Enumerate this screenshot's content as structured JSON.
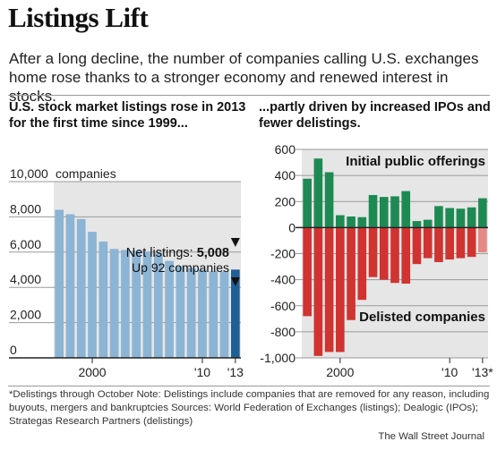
{
  "headline": "Listings Lift",
  "dek": "After a long decline, the number of companies calling U.S. exchanges home rose thanks to a stronger economy and renewed interest in stocks.",
  "footnote": "*Delistings through October   Note: Delistings include companies that are removed for any reason, including buyouts, mergers and bankruptcies      Sources: World Federation of Exchanges (listings); Dealogic (IPOs); Strategas Research Partners (delistings)",
  "credit": "The Wall Street Journal",
  "chart_data": [
    {
      "type": "bar",
      "subtitle": "U.S. stock market listings rose in 2013 for the first time since 1999...",
      "x": [
        1997,
        1998,
        1999,
        2000,
        2001,
        2002,
        2003,
        2004,
        2005,
        2006,
        2007,
        2008,
        2009,
        2010,
        2011,
        2012,
        2013
      ],
      "values": [
        8400,
        8150,
        7880,
        7150,
        6600,
        6180,
        6120,
        6080,
        6030,
        5950,
        5500,
        5200,
        5100,
        5000,
        4920,
        4916,
        5008
      ],
      "ylim": [
        0,
        10000
      ],
      "y_ticks": [
        "0",
        "2,000",
        "4,000",
        "6,000",
        "8,000",
        "10,000"
      ],
      "y_unit_label": "companies",
      "x_tick_labels": [
        "2000",
        "'10",
        "'13"
      ],
      "annotation": {
        "title": "Net listings:",
        "value": "5,008",
        "note": "Up 92 companies"
      },
      "colors": {
        "bars": "#8cb4d4",
        "highlight": "#1f5f96",
        "plot_bg": "#e6e6e6"
      }
    },
    {
      "type": "bar",
      "subtitle": "...partly driven by increased IPOs and fewer delistings.",
      "x": [
        1997,
        1998,
        1999,
        2000,
        2001,
        2002,
        2003,
        2004,
        2005,
        2006,
        2007,
        2008,
        2009,
        2010,
        2011,
        2012,
        2013
      ],
      "series": [
        {
          "name": "Initial public offerings",
          "values": [
            375,
            530,
            425,
            95,
            85,
            80,
            250,
            235,
            240,
            280,
            50,
            60,
            165,
            150,
            145,
            155,
            225
          ]
        },
        {
          "name": "Delisted companies",
          "values": [
            -680,
            -985,
            -955,
            -955,
            -710,
            -555,
            -380,
            -400,
            -425,
            -430,
            -280,
            -235,
            -265,
            -245,
            -235,
            -225,
            -190
          ]
        }
      ],
      "ylim": [
        -1000,
        600
      ],
      "y_ticks": [
        "-1,000",
        "-800",
        "-600",
        "-400",
        "-200",
        "0",
        "200",
        "400",
        "600"
      ],
      "x_tick_labels": [
        "2000",
        "'10",
        "'13*"
      ],
      "colors": {
        "ipo": "#1e8a53",
        "delist": "#d03330",
        "delist_partial": "#e58a87",
        "plot_bg": "#e6e6e6"
      }
    }
  ]
}
